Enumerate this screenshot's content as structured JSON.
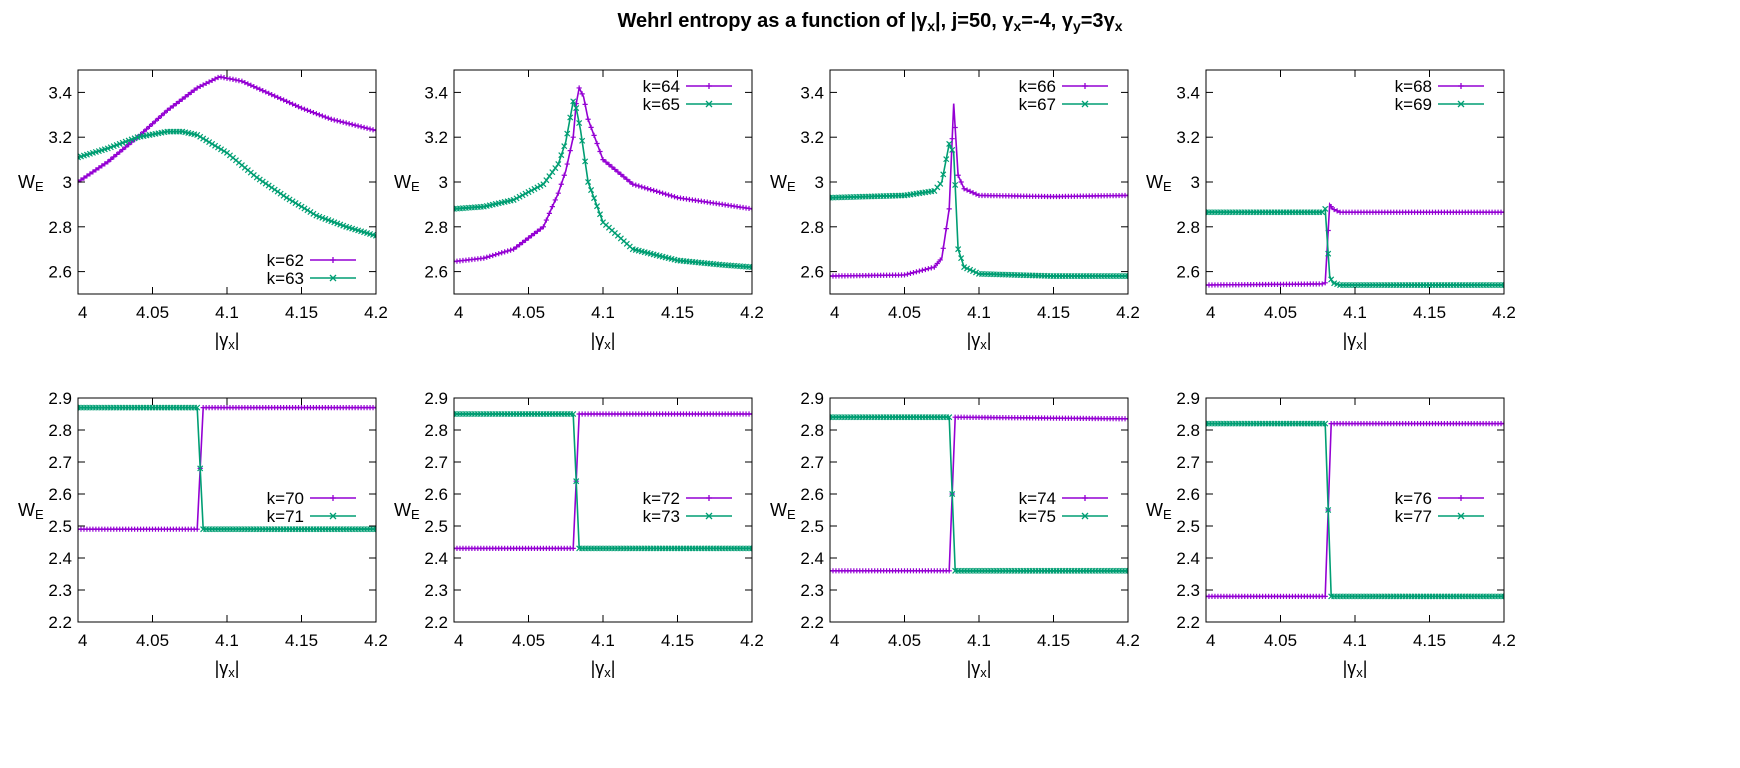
{
  "figure": {
    "title": "Wehrl entropy as a function of |γx|,  j=50, γx=-4, γy=3γx",
    "title_segments": [
      {
        "t": "Wehrl entropy as a function of |",
        "s": ""
      },
      {
        "t": "γ",
        "s": ""
      },
      {
        "t": "x",
        "s": "sub"
      },
      {
        "t": "|,  j=50, ",
        "s": ""
      },
      {
        "t": "γ",
        "s": ""
      },
      {
        "t": "x",
        "s": "sub"
      },
      {
        "t": "=-4, ",
        "s": ""
      },
      {
        "t": "γ",
        "s": ""
      },
      {
        "t": "y",
        "s": "sub"
      },
      {
        "t": "=3",
        "s": ""
      },
      {
        "t": "γ",
        "s": ""
      },
      {
        "t": "x",
        "s": "sub"
      }
    ],
    "xlabel_main": "|γ",
    "xlabel_sub": "x",
    "xlabel_end": "|",
    "ylabel_main": "W",
    "ylabel_sub": "E",
    "colors": {
      "series_a": "#9400d3",
      "series_b": "#009e73"
    }
  },
  "chart_data": [
    {
      "type": "line",
      "xlim": [
        4,
        4.2
      ],
      "ylim": [
        2.5,
        3.5
      ],
      "xticks": [
        "4",
        "4.05",
        "4.1",
        "4.15",
        "4.2"
      ],
      "yticks": [
        "2.6",
        "2.8",
        "3",
        "3.2",
        "3.4"
      ],
      "legend_position": "bottom-right",
      "series": [
        {
          "name": "k=62",
          "color": "#9400d3",
          "marker": "plus",
          "x": [
            4.0,
            4.02,
            4.04,
            4.06,
            4.08,
            4.095,
            4.11,
            4.13,
            4.15,
            4.17,
            4.2
          ],
          "y": [
            3.0,
            3.09,
            3.2,
            3.32,
            3.42,
            3.47,
            3.45,
            3.39,
            3.33,
            3.28,
            3.23
          ]
        },
        {
          "name": "k=63",
          "color": "#009e73",
          "marker": "cross",
          "x": [
            4.0,
            4.02,
            4.04,
            4.06,
            4.07,
            4.08,
            4.1,
            4.12,
            4.14,
            4.16,
            4.18,
            4.2
          ],
          "y": [
            3.11,
            3.15,
            3.2,
            3.225,
            3.225,
            3.21,
            3.13,
            3.02,
            2.93,
            2.85,
            2.8,
            2.76
          ]
        }
      ]
    },
    {
      "type": "line",
      "xlim": [
        4,
        4.2
      ],
      "ylim": [
        2.5,
        3.5
      ],
      "xticks": [
        "4",
        "4.05",
        "4.1",
        "4.15",
        "4.2"
      ],
      "yticks": [
        "2.6",
        "2.8",
        "3",
        "3.2",
        "3.4"
      ],
      "legend_position": "top-right",
      "series": [
        {
          "name": "k=64",
          "color": "#9400d3",
          "marker": "plus",
          "x": [
            4.0,
            4.02,
            4.04,
            4.06,
            4.07,
            4.075,
            4.08,
            4.082,
            4.084,
            4.087,
            4.09,
            4.1,
            4.12,
            4.15,
            4.18,
            4.2
          ],
          "y": [
            2.645,
            2.66,
            2.7,
            2.8,
            2.95,
            3.05,
            3.2,
            3.35,
            3.42,
            3.38,
            3.28,
            3.1,
            2.99,
            2.93,
            2.9,
            2.88
          ]
        },
        {
          "name": "k=65",
          "color": "#009e73",
          "marker": "cross",
          "x": [
            4.0,
            4.02,
            4.04,
            4.06,
            4.07,
            4.075,
            4.08,
            4.082,
            4.085,
            4.09,
            4.1,
            4.12,
            4.15,
            4.18,
            4.2
          ],
          "y": [
            2.88,
            2.89,
            2.92,
            2.99,
            3.08,
            3.18,
            3.36,
            3.33,
            3.23,
            3.0,
            2.82,
            2.7,
            2.65,
            2.63,
            2.62
          ]
        }
      ]
    },
    {
      "type": "line",
      "xlim": [
        4,
        4.2
      ],
      "ylim": [
        2.5,
        3.5
      ],
      "xticks": [
        "4",
        "4.05",
        "4.1",
        "4.15",
        "4.2"
      ],
      "yticks": [
        "2.6",
        "2.8",
        "3",
        "3.2",
        "3.4"
      ],
      "legend_position": "top-right",
      "series": [
        {
          "name": "k=66",
          "color": "#9400d3",
          "marker": "plus",
          "x": [
            4.0,
            4.05,
            4.07,
            4.075,
            4.08,
            4.083,
            4.086,
            4.09,
            4.1,
            4.15,
            4.2
          ],
          "y": [
            2.58,
            2.585,
            2.62,
            2.66,
            2.88,
            3.35,
            3.03,
            2.97,
            2.94,
            2.935,
            2.94
          ]
        },
        {
          "name": "k=67",
          "color": "#009e73",
          "marker": "cross",
          "x": [
            4.0,
            4.05,
            4.07,
            4.075,
            4.08,
            4.083,
            4.086,
            4.09,
            4.1,
            4.15,
            4.2
          ],
          "y": [
            2.93,
            2.94,
            2.96,
            3.0,
            3.17,
            3.13,
            2.7,
            2.62,
            2.59,
            2.58,
            2.58
          ]
        }
      ]
    },
    {
      "type": "line",
      "xlim": [
        4,
        4.2
      ],
      "ylim": [
        2.5,
        3.5
      ],
      "xticks": [
        "4",
        "4.05",
        "4.1",
        "4.15",
        "4.2"
      ],
      "yticks": [
        "2.6",
        "2.8",
        "3",
        "3.2",
        "3.4"
      ],
      "legend_position": "top-right",
      "series": [
        {
          "name": "k=68",
          "color": "#9400d3",
          "marker": "plus",
          "x": [
            4.0,
            4.078,
            4.08,
            4.083,
            4.085,
            4.09,
            4.2
          ],
          "y": [
            2.54,
            2.545,
            2.55,
            2.9,
            2.88,
            2.865,
            2.865
          ]
        },
        {
          "name": "k=69",
          "color": "#009e73",
          "marker": "cross",
          "x": [
            4.0,
            4.078,
            4.08,
            4.083,
            4.085,
            4.09,
            4.2
          ],
          "y": [
            2.865,
            2.865,
            2.88,
            2.58,
            2.55,
            2.54,
            2.54
          ]
        }
      ]
    },
    {
      "type": "line",
      "xlim": [
        4,
        4.2
      ],
      "ylim": [
        2.2,
        2.9
      ],
      "xticks": [
        "4",
        "4.05",
        "4.1",
        "4.15",
        "4.2"
      ],
      "yticks": [
        "2.2",
        "2.3",
        "2.4",
        "2.5",
        "2.6",
        "2.7",
        "2.8",
        "2.9"
      ],
      "legend_position": "right",
      "series": [
        {
          "name": "k=70",
          "color": "#9400d3",
          "marker": "plus",
          "x": [
            4.0,
            4.08,
            4.084,
            4.2
          ],
          "y": [
            2.49,
            2.49,
            2.87,
            2.87
          ]
        },
        {
          "name": "k=71",
          "color": "#009e73",
          "marker": "cross",
          "x": [
            4.0,
            4.08,
            4.084,
            4.2
          ],
          "y": [
            2.87,
            2.87,
            2.49,
            2.49
          ]
        }
      ]
    },
    {
      "type": "line",
      "xlim": [
        4,
        4.2
      ],
      "ylim": [
        2.2,
        2.9
      ],
      "xticks": [
        "4",
        "4.05",
        "4.1",
        "4.15",
        "4.2"
      ],
      "yticks": [
        "2.2",
        "2.3",
        "2.4",
        "2.5",
        "2.6",
        "2.7",
        "2.8",
        "2.9"
      ],
      "legend_position": "right",
      "series": [
        {
          "name": "k=72",
          "color": "#9400d3",
          "marker": "plus",
          "x": [
            4.0,
            4.08,
            4.084,
            4.2
          ],
          "y": [
            2.43,
            2.43,
            2.85,
            2.85
          ]
        },
        {
          "name": "k=73",
          "color": "#009e73",
          "marker": "cross",
          "x": [
            4.0,
            4.08,
            4.084,
            4.2
          ],
          "y": [
            2.85,
            2.85,
            2.43,
            2.43
          ]
        }
      ]
    },
    {
      "type": "line",
      "xlim": [
        4,
        4.2
      ],
      "ylim": [
        2.2,
        2.9
      ],
      "xticks": [
        "4",
        "4.05",
        "4.1",
        "4.15",
        "4.2"
      ],
      "yticks": [
        "2.2",
        "2.3",
        "2.4",
        "2.5",
        "2.6",
        "2.7",
        "2.8",
        "2.9"
      ],
      "legend_position": "right",
      "series": [
        {
          "name": "k=74",
          "color": "#9400d3",
          "marker": "plus",
          "x": [
            4.0,
            4.08,
            4.084,
            4.2
          ],
          "y": [
            2.36,
            2.36,
            2.84,
            2.835
          ]
        },
        {
          "name": "k=75",
          "color": "#009e73",
          "marker": "cross",
          "x": [
            4.0,
            4.08,
            4.084,
            4.2
          ],
          "y": [
            2.84,
            2.84,
            2.36,
            2.36
          ]
        }
      ]
    },
    {
      "type": "line",
      "xlim": [
        4,
        4.2
      ],
      "ylim": [
        2.2,
        2.9
      ],
      "xticks": [
        "4",
        "4.05",
        "4.1",
        "4.15",
        "4.2"
      ],
      "yticks": [
        "2.2",
        "2.3",
        "2.4",
        "2.5",
        "2.6",
        "2.7",
        "2.8",
        "2.9"
      ],
      "legend_position": "right",
      "series": [
        {
          "name": "k=76",
          "color": "#9400d3",
          "marker": "plus",
          "x": [
            4.0,
            4.08,
            4.084,
            4.2
          ],
          "y": [
            2.28,
            2.28,
            2.82,
            2.82
          ]
        },
        {
          "name": "k=77",
          "color": "#009e73",
          "marker": "cross",
          "x": [
            4.0,
            4.08,
            4.084,
            4.2
          ],
          "y": [
            2.82,
            2.82,
            2.28,
            2.28
          ]
        }
      ]
    }
  ]
}
